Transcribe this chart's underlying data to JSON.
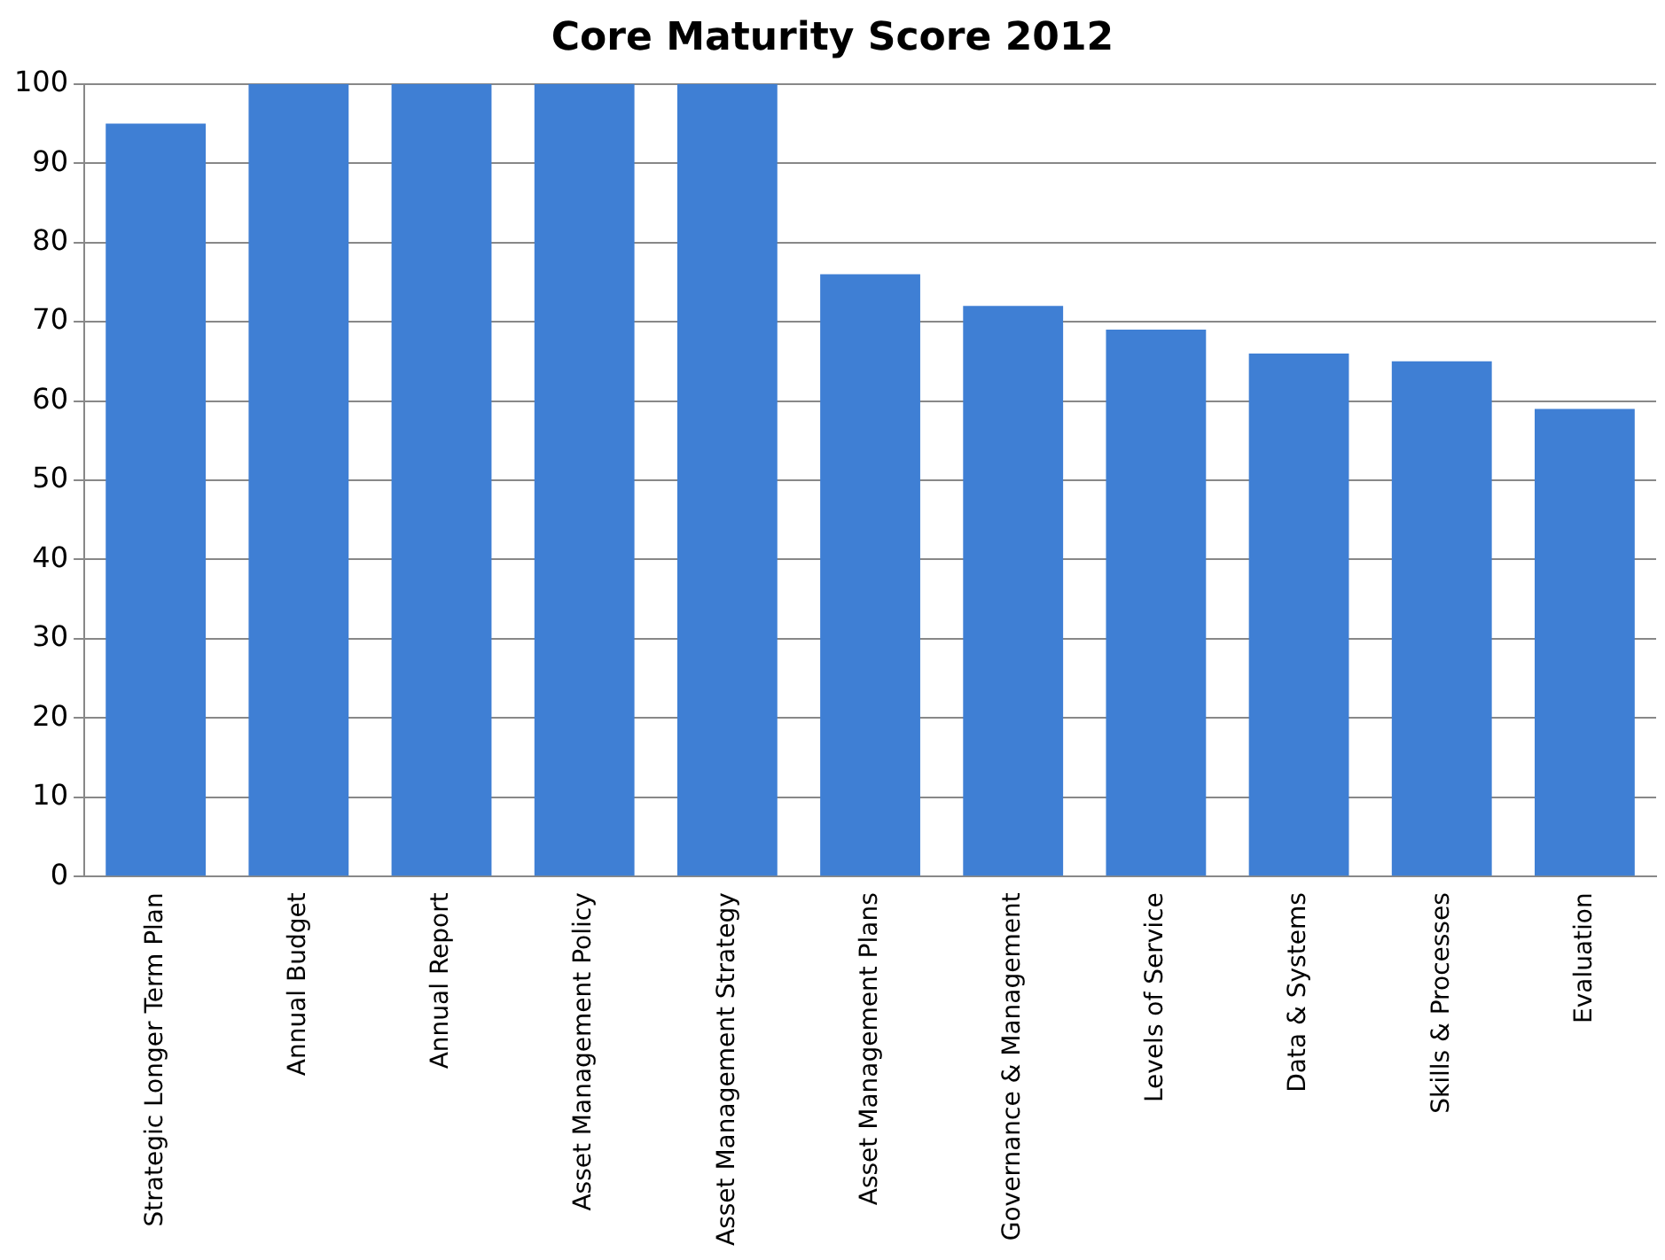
{
  "chart_data": {
    "type": "bar",
    "title": "Core Maturity Score 2012",
    "categories": [
      "Strategic Longer Term Plan",
      "Annual Budget",
      "Annual Report",
      "Asset Management Policy",
      "Asset Management Strategy",
      "Asset Management Plans",
      "Governance & Management",
      "Levels of Service",
      "Data & Systems",
      "Skills & Processes",
      "Evaluation"
    ],
    "values": [
      95,
      100,
      100,
      100,
      100,
      76,
      72,
      69,
      66,
      65,
      59
    ],
    "color": "#3f7fd4",
    "ylim": [
      0,
      100
    ],
    "yticks": [
      0,
      10,
      20,
      30,
      40,
      50,
      60,
      70,
      80,
      90,
      100
    ],
    "grid": "y",
    "legend": false
  }
}
